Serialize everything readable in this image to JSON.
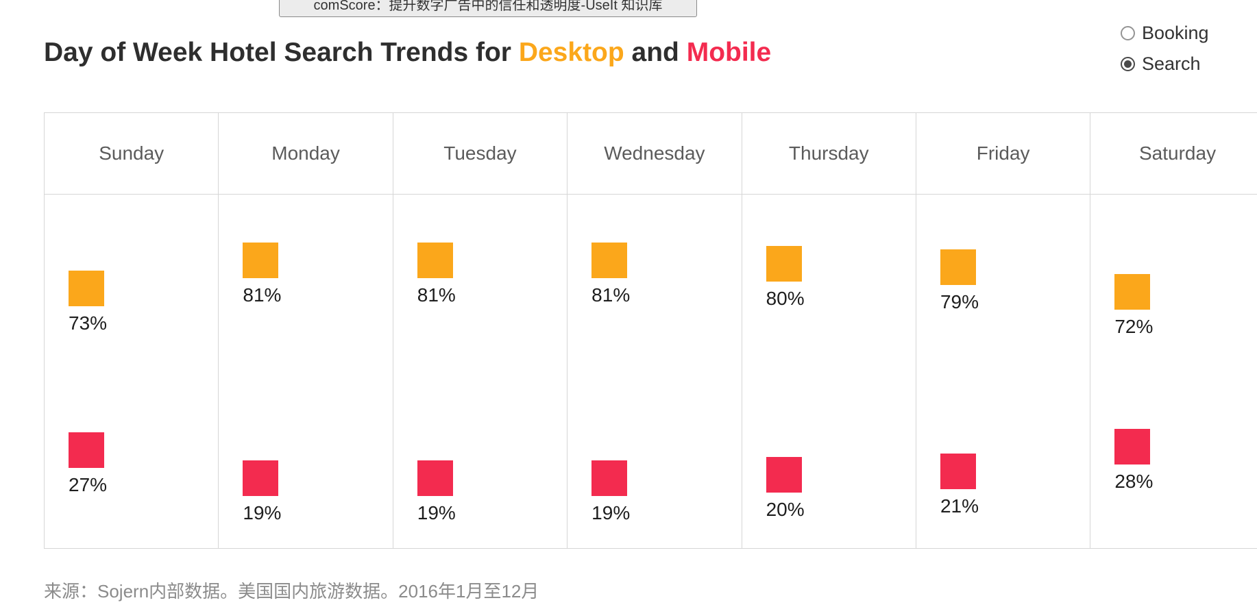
{
  "tooltip": {
    "text": "comScore：提升数字广告中的信任和透明度-UseIt 知识库"
  },
  "title": {
    "prefix": "Day of Week Hotel Search Trends for ",
    "desktop": "Desktop",
    "connector": " and ",
    "mobile": "Mobile"
  },
  "controls": {
    "options": [
      {
        "label": "Booking",
        "selected": false
      },
      {
        "label": "Search",
        "selected": true
      }
    ]
  },
  "chart_data": {
    "type": "scatter",
    "title": "Day of Week Hotel Search Trends for Desktop and Mobile",
    "categories": [
      "Sunday",
      "Monday",
      "Tuesday",
      "Wednesday",
      "Thursday",
      "Friday",
      "Saturday"
    ],
    "series": [
      {
        "name": "Desktop",
        "color": "#FBA71B",
        "values": [
          73,
          81,
          81,
          81,
          80,
          79,
          72
        ]
      },
      {
        "name": "Mobile",
        "color": "#F32B4F",
        "values": [
          27,
          19,
          19,
          19,
          20,
          21,
          28
        ]
      }
    ],
    "value_unit": "%",
    "value_range": [
      0,
      100
    ],
    "legend_position": "title-inline",
    "grid": "column-dividers"
  },
  "footer": {
    "source": "来源：Sojern内部数据。美国国内旅游数据。2016年1月至12月"
  }
}
